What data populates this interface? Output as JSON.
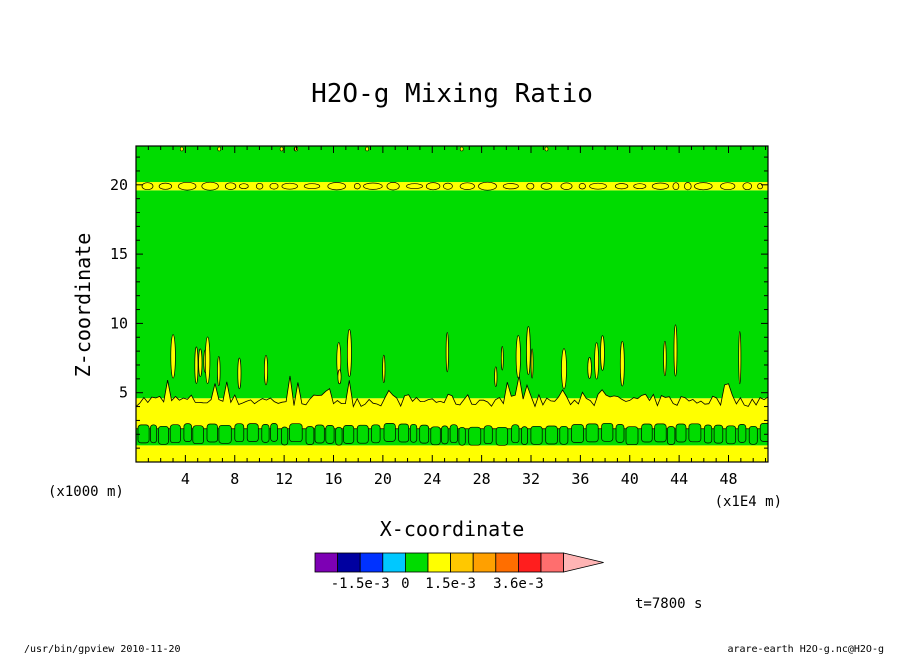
{
  "chart_data": {
    "type": "heatmap",
    "title": "H2O-g Mixing Ratio",
    "xlabel": "X-coordinate",
    "ylabel": "Z-coordinate",
    "x_unit_note": "(x1E4 m)",
    "y_unit_note": "(x1000 m)",
    "xlim": [
      0,
      51.2
    ],
    "ylim": [
      0,
      22.8
    ],
    "x_ticks": [
      4,
      8,
      12,
      16,
      20,
      24,
      28,
      32,
      36,
      40,
      44,
      48
    ],
    "y_ticks": [
      5,
      10,
      15,
      20
    ],
    "colorbar": {
      "colors": [
        "#7d00b4",
        "#0000a0",
        "#0032ff",
        "#00c8ff",
        "#00dc00",
        "#ffff00",
        "#ffc800",
        "#ffa000",
        "#ff6e00",
        "#ff1e1e",
        "#ff6e6e",
        "#ffb4b4"
      ],
      "tick_labels": [
        "-1.5e-3",
        "0",
        "1.5e-3",
        "3.6e-3"
      ]
    },
    "time_label": "t=7800 s",
    "bands": [
      {
        "z_from": 0.0,
        "z_to": 1.2,
        "level": "0 to 1.5e-3",
        "color": "#ffff00"
      },
      {
        "z_from": 1.2,
        "z_to": 2.4,
        "level": "0 to -1.5e-3 (cells)",
        "color": "#00dc00"
      },
      {
        "z_from": 2.4,
        "z_to": 4.6,
        "level": "0 to 1.5e-3",
        "color": "#ffff00"
      },
      {
        "z_from": 4.6,
        "z_to": 19.6,
        "level": "0 to -1.5e-3",
        "color": "#00dc00"
      },
      {
        "z_from": 19.6,
        "z_to": 20.2,
        "level": "0 to 1.5e-3 (patches)",
        "color": "#ffff00"
      },
      {
        "z_from": 20.2,
        "z_to": 22.8,
        "level": "0 to -1.5e-3",
        "color": "#00dc00"
      }
    ]
  },
  "footer": {
    "left": "/usr/bin/gpview  2010-11-20",
    "right": "arare-earth_H2O-g.nc@H2O-g"
  }
}
